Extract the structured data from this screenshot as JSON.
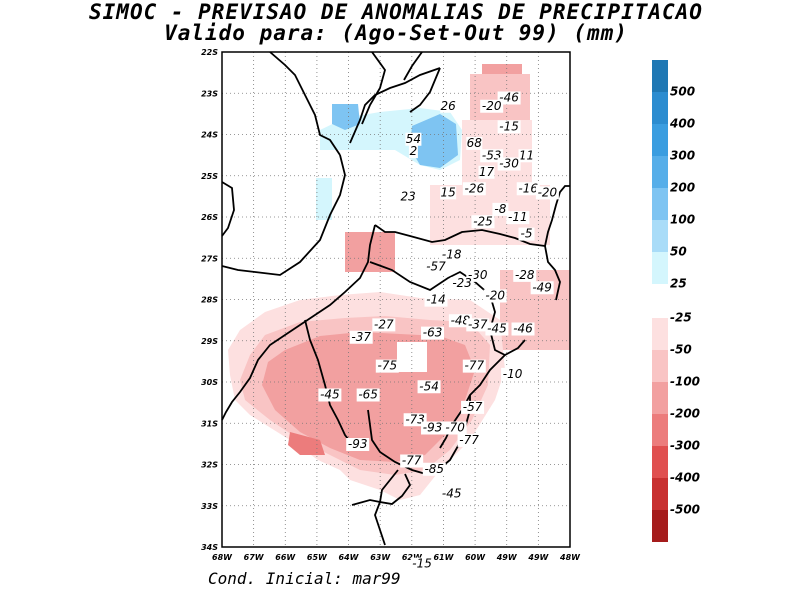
{
  "title": "SIMOC - PREVISAO DE ANOMALIAS DE PRECIPITACAO",
  "subtitle": "Valido para: (Ago-Set-Out 99) (mm)",
  "footer": "Cond. Inicial: mar99",
  "axes": {
    "lon_range": [
      -68,
      -48
    ],
    "lat_range": [
      -34,
      -22
    ],
    "lon_ticks": [
      "68W",
      "67W",
      "66W",
      "65W",
      "64W",
      "63W",
      "62W",
      "61W",
      "60W",
      "49W",
      "49W",
      "48W"
    ],
    "lat_ticks": [
      "22S",
      "23S",
      "24S",
      "25S",
      "26S",
      "27S",
      "28S",
      "29S",
      "30S",
      "31S",
      "32S",
      "33S",
      "34S"
    ]
  },
  "legend": {
    "positive": [
      {
        "label": "500",
        "color": "#1f78b4"
      },
      {
        "label": "400",
        "color": "#2b8cd0"
      },
      {
        "label": "300",
        "color": "#3a9de0"
      },
      {
        "label": "200",
        "color": "#56aee9"
      },
      {
        "label": "100",
        "color": "#7ec4f2"
      },
      {
        "label": "50",
        "color": "#a9dcf8"
      },
      {
        "label": "25",
        "color": "#d4f6fd"
      }
    ],
    "negative": [
      {
        "label": "-25",
        "color": "#fde0e0"
      },
      {
        "label": "-50",
        "color": "#f9c4c4"
      },
      {
        "label": "-100",
        "color": "#f2a0a0"
      },
      {
        "label": "-200",
        "color": "#ec7c7c"
      },
      {
        "label": "-300",
        "color": "#e04f4f"
      },
      {
        "label": "-400",
        "color": "#c83030"
      },
      {
        "label": "-500",
        "color": "#a51c1c"
      }
    ]
  },
  "contour_labels": [
    {
      "text": "-46",
      "lon": -51.5,
      "lat": -23.2
    },
    {
      "text": "-20",
      "lon": -52.5,
      "lat": -23.4
    },
    {
      "text": "26",
      "lon": -55.0,
      "lat": -23.4
    },
    {
      "text": "-15",
      "lon": -51.5,
      "lat": -23.9
    },
    {
      "text": "54",
      "lon": -57.0,
      "lat": -24.2
    },
    {
      "text": "68",
      "lon": -53.5,
      "lat": -24.3
    },
    {
      "text": "2",
      "lon": -57.0,
      "lat": -24.5
    },
    {
      "text": "-53",
      "lon": -52.5,
      "lat": -24.6
    },
    {
      "text": "11",
      "lon": -50.5,
      "lat": -24.6
    },
    {
      "text": "-30",
      "lon": -51.5,
      "lat": -24.8
    },
    {
      "text": "17",
      "lon": -52.8,
      "lat": -25.0
    },
    {
      "text": "-26",
      "lon": -53.5,
      "lat": -25.4
    },
    {
      "text": "15",
      "lon": -55.0,
      "lat": -25.5
    },
    {
      "text": "23",
      "lon": -57.3,
      "lat": -25.6
    },
    {
      "text": "-16",
      "lon": -50.4,
      "lat": -25.4
    },
    {
      "text": "-20",
      "lon": -49.3,
      "lat": -25.5
    },
    {
      "text": "-8",
      "lon": -52.0,
      "lat": -25.9
    },
    {
      "text": "-11",
      "lon": -51.0,
      "lat": -26.1
    },
    {
      "text": "-25",
      "lon": -53.0,
      "lat": -26.2
    },
    {
      "text": "-5",
      "lon": -50.5,
      "lat": -26.5
    },
    {
      "text": "-18",
      "lon": -54.8,
      "lat": -27.0
    },
    {
      "text": "-57",
      "lon": -55.7,
      "lat": -27.3
    },
    {
      "text": "-30",
      "lon": -53.3,
      "lat": -27.5
    },
    {
      "text": "-28",
      "lon": -50.6,
      "lat": -27.5
    },
    {
      "text": "-23",
      "lon": -54.2,
      "lat": -27.7
    },
    {
      "text": "-49",
      "lon": -49.6,
      "lat": -27.8
    },
    {
      "text": "-20",
      "lon": -52.3,
      "lat": -28.0
    },
    {
      "text": "-14",
      "lon": -55.7,
      "lat": -28.1
    },
    {
      "text": "-27",
      "lon": -58.7,
      "lat": -28.7
    },
    {
      "text": "-48",
      "lon": -54.3,
      "lat": -28.6
    },
    {
      "text": "-37",
      "lon": -53.3,
      "lat": -28.7
    },
    {
      "text": "-45",
      "lon": -52.2,
      "lat": -28.8
    },
    {
      "text": "-46",
      "lon": -50.7,
      "lat": -28.8
    },
    {
      "text": "-63",
      "lon": -55.9,
      "lat": -28.9
    },
    {
      "text": "-37",
      "lon": -60.0,
      "lat": -29.0
    },
    {
      "text": "-75",
      "lon": -58.5,
      "lat": -29.7
    },
    {
      "text": "-77",
      "lon": -53.5,
      "lat": -29.7
    },
    {
      "text": "-10",
      "lon": -51.3,
      "lat": -29.9
    },
    {
      "text": "-54",
      "lon": -56.1,
      "lat": -30.2
    },
    {
      "text": "-45",
      "lon": -61.8,
      "lat": -30.4
    },
    {
      "text": "-65",
      "lon": -59.6,
      "lat": -30.4
    },
    {
      "text": "-57",
      "lon": -53.6,
      "lat": -30.7
    },
    {
      "text": "-73",
      "lon": -56.9,
      "lat": -31.0
    },
    {
      "text": "-93",
      "lon": -55.9,
      "lat": -31.2
    },
    {
      "text": "-70",
      "lon": -54.6,
      "lat": -31.2
    },
    {
      "text": "-93",
      "lon": -60.2,
      "lat": -31.6
    },
    {
      "text": "-77",
      "lon": -53.8,
      "lat": -31.5
    },
    {
      "text": "-77",
      "lon": -57.1,
      "lat": -32.0
    },
    {
      "text": "-85",
      "lon": -55.8,
      "lat": -32.2
    },
    {
      "text": "-45",
      "lon": -54.8,
      "lat": -32.8
    },
    {
      "text": "-15",
      "lon": -56.5,
      "lat": -34.5
    }
  ]
}
